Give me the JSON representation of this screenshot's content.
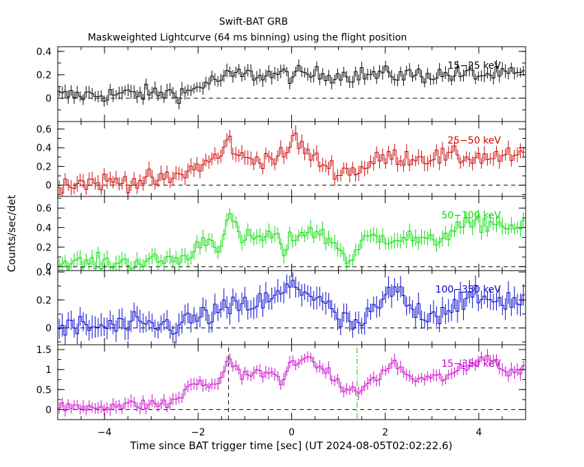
{
  "chart_data": {
    "type": "line",
    "style": "step-with-errorbars",
    "title": "Swift-BAT GRB",
    "subtitle": "Maskweighted Lightcurve (64 ms binning) using the flight position",
    "xlabel": "Time since BAT trigger time [sec] (UT 2024-08-05T02:02:22.6)",
    "ylabel": "Counts/sec/det",
    "xlim": [
      -5,
      5
    ],
    "x_ticks": [
      -4,
      -2,
      0,
      2,
      4
    ],
    "x_tick_labels": [
      "−4",
      "−2",
      "0",
      "2",
      "4"
    ],
    "bin_width_sec": 0.064,
    "grid": false,
    "markers": [
      {
        "x": -1.35,
        "color": "#000000",
        "style": "dashed",
        "panel": 4
      },
      {
        "x": 1.4,
        "color": "#00cc00",
        "style": "dash-dot",
        "panel": 4
      }
    ],
    "panels": [
      {
        "name": "15-25 keV",
        "label": "15−25 keV",
        "color": "#000000",
        "ylim": [
          -0.2,
          0.44
        ],
        "y_ticks": [
          0,
          0.2,
          0.4
        ],
        "y_tick_labels": [
          "0",
          "0.2",
          "0.4"
        ],
        "profile": [
          [
            -5,
            0.02
          ],
          [
            -2.2,
            0.05
          ],
          [
            -1.9,
            0.12
          ],
          [
            -1.2,
            0.2
          ],
          [
            5,
            0.2
          ]
        ],
        "noise": 0.05,
        "error": 0.05
      },
      {
        "name": "25-50 keV",
        "label": "25−50 keV",
        "color": "#cc0000",
        "ylim": [
          -0.12,
          0.68
        ],
        "y_ticks": [
          0,
          0.2,
          0.4,
          0.6
        ],
        "y_tick_labels": [
          "0",
          "0.2",
          "0.4",
          "0.6"
        ],
        "profile": [
          [
            -5,
            0.02
          ],
          [
            -2.6,
            0.06
          ],
          [
            -2.0,
            0.2
          ],
          [
            -1.5,
            0.32
          ],
          [
            -1.35,
            0.5
          ],
          [
            -1.1,
            0.28
          ],
          [
            -0.1,
            0.3
          ],
          [
            0,
            0.55
          ],
          [
            0.4,
            0.3
          ],
          [
            1.0,
            0.15
          ],
          [
            1.4,
            0.16
          ],
          [
            2.0,
            0.3
          ],
          [
            5,
            0.3
          ]
        ],
        "noise": 0.07,
        "error": 0.07
      },
      {
        "name": "50-100 keV",
        "label": "50−100 keV",
        "color": "#00dd00",
        "ylim": [
          -0.04,
          0.72
        ],
        "y_ticks": [
          0,
          0.2,
          0.4,
          0.6
        ],
        "y_tick_labels": [
          "0",
          "0.2",
          "0.4",
          "0.6"
        ],
        "profile": [
          [
            -5,
            0.03
          ],
          [
            -3.0,
            0.05
          ],
          [
            -2.15,
            0.1
          ],
          [
            -1.9,
            0.3
          ],
          [
            -1.55,
            0.2
          ],
          [
            -1.35,
            0.55
          ],
          [
            -1.1,
            0.28
          ],
          [
            -0.3,
            0.32
          ],
          [
            -0.2,
            0.1
          ],
          [
            0,
            0.3
          ],
          [
            0.4,
            0.38
          ],
          [
            0.9,
            0.25
          ],
          [
            1.25,
            0.05
          ],
          [
            1.6,
            0.3
          ],
          [
            2.5,
            0.3
          ],
          [
            3.0,
            0.24
          ],
          [
            3.5,
            0.4
          ],
          [
            4.3,
            0.45
          ],
          [
            5,
            0.38
          ]
        ],
        "noise": 0.06,
        "error": 0.07
      },
      {
        "name": "100-350 keV",
        "label": "100−350 keV",
        "color": "#0000cc",
        "ylim": [
          -0.12,
          0.41
        ],
        "y_ticks": [
          0,
          0.2,
          0.4
        ],
        "y_tick_labels": [
          "0",
          "0.2",
          "0.4"
        ],
        "profile": [
          [
            -5,
            0.0
          ],
          [
            -2.5,
            0.02
          ],
          [
            -1.5,
            0.12
          ],
          [
            -0.4,
            0.2
          ],
          [
            0,
            0.3
          ],
          [
            0.6,
            0.22
          ],
          [
            1.0,
            0.05
          ],
          [
            1.5,
            0.02
          ],
          [
            2.2,
            0.28
          ],
          [
            2.6,
            0.12
          ],
          [
            3.1,
            0.1
          ],
          [
            3.6,
            0.2
          ],
          [
            5,
            0.2
          ]
        ],
        "noise": 0.06,
        "error": 0.07
      },
      {
        "name": "15-350 keV",
        "label": "15−350 keV",
        "color": "#cc00cc",
        "ylim": [
          -0.25,
          1.62
        ],
        "y_ticks": [
          0,
          0.5,
          1,
          1.5
        ],
        "y_tick_labels": [
          "0",
          "0.5",
          "1",
          "1.5"
        ],
        "profile": [
          [
            -5,
            0.05
          ],
          [
            -2.6,
            0.15
          ],
          [
            -2.0,
            0.7
          ],
          [
            -1.6,
            0.55
          ],
          [
            -1.35,
            1.3
          ],
          [
            -1.1,
            0.9
          ],
          [
            -0.4,
            0.9
          ],
          [
            -0.2,
            0.6
          ],
          [
            0,
            1.3
          ],
          [
            0.6,
            1.1
          ],
          [
            1.0,
            0.65
          ],
          [
            1.35,
            0.4
          ],
          [
            1.7,
            0.7
          ],
          [
            2.2,
            1.15
          ],
          [
            2.6,
            0.75
          ],
          [
            3.2,
            0.8
          ],
          [
            3.8,
            1.05
          ],
          [
            4.2,
            1.4
          ],
          [
            4.6,
            0.9
          ],
          [
            5,
            1.0
          ]
        ],
        "noise": 0.1,
        "error": 0.14
      }
    ]
  }
}
